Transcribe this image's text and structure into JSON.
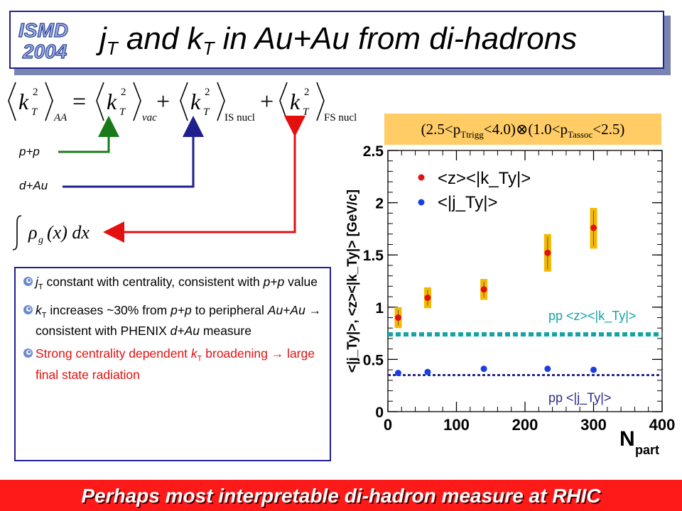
{
  "header": {
    "logo_line1": "ISMD",
    "logo_line2": "2004",
    "title_j": "j",
    "title_T1": "T",
    "title_mid": " and k",
    "title_T2": "T",
    "title_rest": " in Au+Au from di-hadrons"
  },
  "formula": {
    "k": "k",
    "T": "T",
    "sq": "2",
    "sub_aa": "AA",
    "sub_vac": "vac",
    "sub_is": "IS nucl",
    "sub_fs": "FS nucl",
    "eq": "=",
    "plus": "+"
  },
  "labels": {
    "pp": "p+p",
    "dau": "d+Au",
    "integral_body": "ρ",
    "integral_sub": "g",
    "integral_x": "(x) dx"
  },
  "bullets": [
    {
      "pre": "j",
      "sub": "T",
      "text": " constant with centrality, consistent with ",
      "it": "p+p",
      "post": " value"
    },
    {
      "pre": "k",
      "sub": "T",
      "text": " increases ~30% from ",
      "it": "p+p",
      "mid": " to peripheral ",
      "it2": "Au+Au",
      "post": "  → consistent with PHENIX ",
      "it3": "d+Au",
      "post2": " measure"
    },
    {
      "text": "Strong centrality dependent ",
      "it": "k",
      "sub": "T",
      "post": " broadening  → large final state radiation"
    }
  ],
  "condition": "(2.5<p_Ttrigg<4.0)⊗(1.0<p_Tassoc<2.5)",
  "condition_parts": {
    "open": "(2.5<p",
    "sub1": "Ttrigg",
    "mid": "<4.0)⊗(1.0<p",
    "sub2": "Tassoc",
    "close": "<2.5)"
  },
  "chart_data": {
    "type": "scatter",
    "xlabel": "N",
    "xlabel_sub": "part",
    "ylabel": "<|j_Ty|>,  <z><|k_Ty|>  [GeV/c]",
    "xlim": [
      0,
      400
    ],
    "ylim": [
      0,
      2.5
    ],
    "x_ticks": [
      "0",
      "100",
      "200",
      "300",
      "400"
    ],
    "y_ticks": [
      "0",
      "0.5",
      "1",
      "1.5",
      "2",
      "2.5"
    ],
    "series": [
      {
        "name": "<z><|k_Ty|>",
        "color": "#e41010",
        "points": [
          {
            "x": 15,
            "y": 0.9,
            "ylo": 0.8,
            "yhi": 1.0
          },
          {
            "x": 58,
            "y": 1.09,
            "ylo": 0.99,
            "yhi": 1.19
          },
          {
            "x": 140,
            "y": 1.17,
            "ylo": 1.07,
            "yhi": 1.27
          },
          {
            "x": 233,
            "y": 1.52,
            "ylo": 1.34,
            "yhi": 1.7
          },
          {
            "x": 300,
            "y": 1.76,
            "ylo": 1.56,
            "yhi": 1.95
          }
        ]
      },
      {
        "name": "<|j_Ty|>",
        "color": "#1a3fe0",
        "points": [
          {
            "x": 15,
            "y": 0.37
          },
          {
            "x": 58,
            "y": 0.38
          },
          {
            "x": 140,
            "y": 0.41
          },
          {
            "x": 233,
            "y": 0.41
          },
          {
            "x": 300,
            "y": 0.4
          }
        ]
      }
    ],
    "reference_lines": [
      {
        "label": "pp <z><|k_Ty|>",
        "y": 0.74,
        "color": "#16a3a3"
      },
      {
        "label": "pp <|j_Ty|>",
        "y": 0.35,
        "color": "#2a2a8a"
      }
    ],
    "legend": [
      "<z><|k_Ty|>",
      "<|j_Ty|>"
    ]
  },
  "footer": "Perhaps most interpretable di-hadron measure at RHIC",
  "colors": {
    "pp_arrow": "#1a7a1a",
    "dau_arrow": "#1f1f8f",
    "fs_arrow": "#e41010",
    "error_band": "#f5b800"
  }
}
